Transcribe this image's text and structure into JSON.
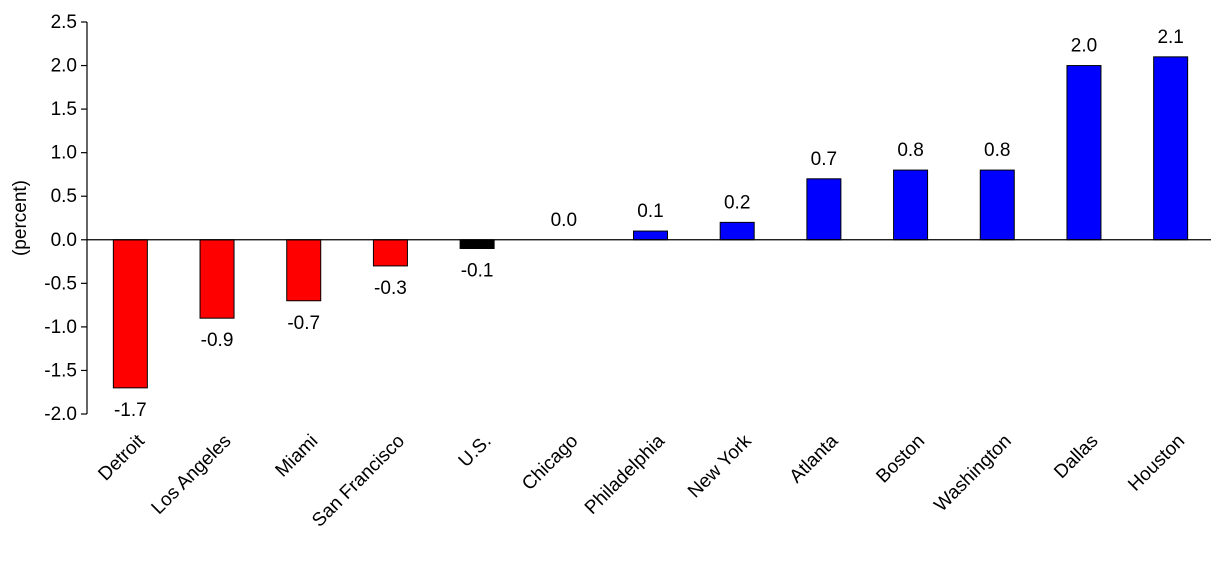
{
  "chart_data": {
    "type": "bar",
    "title": "",
    "xlabel": "",
    "ylabel": "(percent)",
    "ylim": [
      -2.0,
      2.5
    ],
    "yticks": [
      "-2.0",
      "-1.5",
      "-1.0",
      "-0.5",
      "0.0",
      "0.5",
      "1.0",
      "1.5",
      "2.0",
      "2.5"
    ],
    "ytick_values": [
      -2.0,
      -1.5,
      -1.0,
      -0.5,
      0.0,
      0.5,
      1.0,
      1.5,
      2.0,
      2.5
    ],
    "grid": false,
    "categories": [
      "Detroit",
      "Los Angeles",
      "Miami",
      "San Francisco",
      "U.S.",
      "Chicago",
      "Philadelphia",
      "New York",
      "Atlanta",
      "Boston",
      "Washington",
      "Dallas",
      "Houston"
    ],
    "values": [
      -1.7,
      -0.9,
      -0.7,
      -0.3,
      -0.1,
      0.0,
      0.1,
      0.2,
      0.7,
      0.8,
      0.8,
      2.0,
      2.1
    ],
    "value_labels": [
      "-1.7",
      "-0.9",
      "-0.7",
      "-0.3",
      "-0.1",
      "0.0",
      "0.1",
      "0.2",
      "0.7",
      "0.8",
      "0.8",
      "2.0",
      "2.1"
    ],
    "bar_colors": [
      "#ff0000",
      "#ff0000",
      "#ff0000",
      "#ff0000",
      "#000000",
      "#0000ff",
      "#0000ff",
      "#0000ff",
      "#0000ff",
      "#0000ff",
      "#0000ff",
      "#0000ff",
      "#0000ff"
    ]
  }
}
